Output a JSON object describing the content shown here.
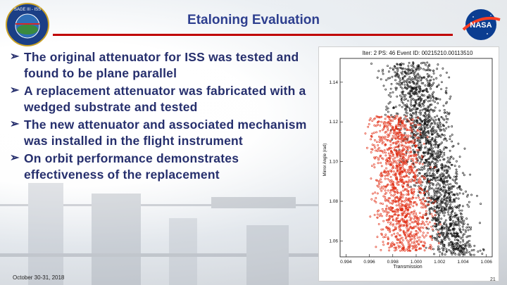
{
  "slide": {
    "title": "Etaloning Evaluation",
    "logo_left_text": "SAGE III - ISS",
    "logo_right_text": "NASA",
    "bullets": [
      "The original attenuator for ISS was tested and found to be plane parallel",
      "A replacement attenuator was fabricated with a wedged substrate and tested",
      "The new attenuator and associated mechanism was installed in the flight instrument",
      "On orbit performance demonstrates effectiveness of the replacement"
    ],
    "footer_date": "October 30-31, 2018",
    "page_number": "21",
    "colors": {
      "title": "#2e3f8f",
      "rule": "#c00000",
      "bullet_text": "#262f6d"
    }
  },
  "chart_data": {
    "type": "scatter",
    "title": "Iter: 2  PS: 46  Event ID: 00215210.00113510",
    "xlabel": "Transmission",
    "ylabel": "Mirror Angle (rad)",
    "xticks": [
      "0.994",
      "0.996",
      "0.998",
      "1.000",
      "1.002",
      "1.004",
      "1.006"
    ],
    "yticks": [
      "1.06",
      "1.08",
      "1.10",
      "1.12",
      "1.14"
    ],
    "xlim": [
      0.9935,
      1.0065
    ],
    "ylim": [
      1.052,
      1.152
    ],
    "series": [
      {
        "color": "#111111",
        "approx_extent": {
          "x": [
            0.9955,
            1.006
          ],
          "y": [
            1.053,
            1.15
          ]
        }
      },
      {
        "color": "#e02a10",
        "approx_extent": {
          "x": [
            0.9945,
            1.0025
          ],
          "y": [
            1.055,
            1.123
          ]
        }
      }
    ]
  }
}
